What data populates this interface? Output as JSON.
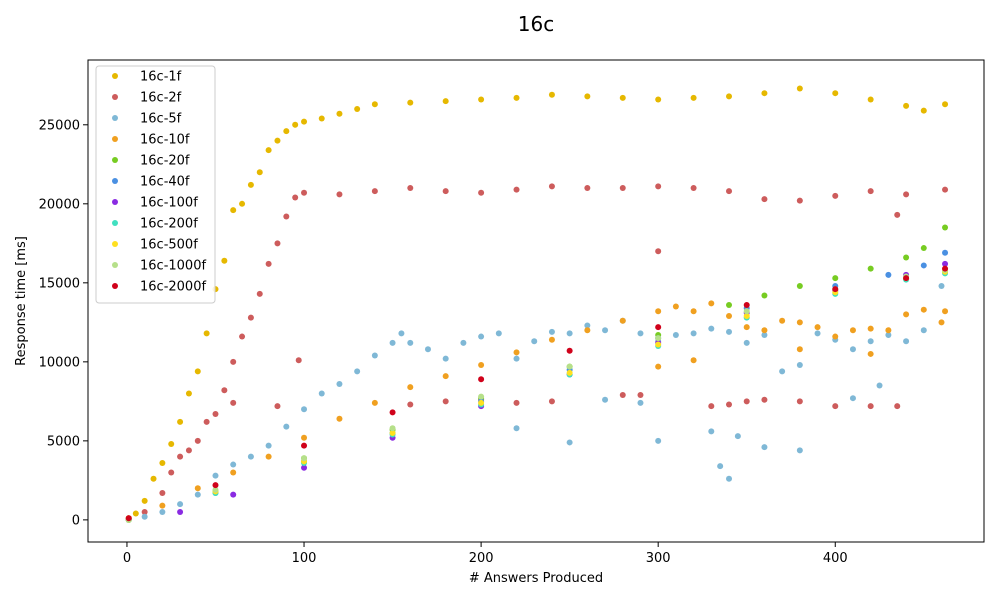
{
  "chart_data": {
    "type": "scatter",
    "title": "16c",
    "xlabel": "# Answers Produced",
    "ylabel": "Response time [ms]",
    "xlim": [
      -22,
      484
    ],
    "ylim": [
      -1400,
      29100
    ],
    "x_ticks": [
      0,
      100,
      200,
      300,
      400
    ],
    "y_ticks": [
      0,
      5000,
      10000,
      15000,
      20000,
      25000
    ],
    "x_tick_labels": [
      "0",
      "100",
      "200",
      "300",
      "400"
    ],
    "y_tick_labels": [
      "0",
      "5000",
      "10000",
      "15000",
      "20000",
      "25000"
    ],
    "grid": false,
    "legend_position": "top-left",
    "series": [
      {
        "name": "16c-1f",
        "color": "#e6b800",
        "points": [
          [
            1,
            100
          ],
          [
            5,
            400
          ],
          [
            10,
            1200
          ],
          [
            15,
            2600
          ],
          [
            20,
            3600
          ],
          [
            25,
            4800
          ],
          [
            30,
            6200
          ],
          [
            35,
            8000
          ],
          [
            40,
            9400
          ],
          [
            45,
            11800
          ],
          [
            50,
            14600
          ],
          [
            55,
            16400
          ],
          [
            60,
            19600
          ],
          [
            65,
            20000
          ],
          [
            70,
            21200
          ],
          [
            75,
            22000
          ],
          [
            80,
            23400
          ],
          [
            85,
            24000
          ],
          [
            90,
            24600
          ],
          [
            95,
            25000
          ],
          [
            100,
            25200
          ],
          [
            110,
            25400
          ],
          [
            120,
            25700
          ],
          [
            130,
            26000
          ],
          [
            140,
            26300
          ],
          [
            160,
            26400
          ],
          [
            180,
            26500
          ],
          [
            200,
            26600
          ],
          [
            220,
            26700
          ],
          [
            240,
            26900
          ],
          [
            260,
            26800
          ],
          [
            280,
            26700
          ],
          [
            300,
            26600
          ],
          [
            320,
            26700
          ],
          [
            340,
            26800
          ],
          [
            360,
            27000
          ],
          [
            380,
            27300
          ],
          [
            400,
            27000
          ],
          [
            420,
            26600
          ],
          [
            440,
            26200
          ],
          [
            450,
            25900
          ],
          [
            462,
            26300
          ]
        ]
      },
      {
        "name": "16c-2f",
        "color": "#cd5c5c",
        "points": [
          [
            1,
            100
          ],
          [
            10,
            500
          ],
          [
            20,
            1700
          ],
          [
            25,
            3000
          ],
          [
            30,
            4000
          ],
          [
            35,
            4400
          ],
          [
            40,
            5000
          ],
          [
            45,
            6200
          ],
          [
            50,
            6700
          ],
          [
            55,
            8200
          ],
          [
            60,
            10000
          ],
          [
            65,
            11600
          ],
          [
            70,
            12800
          ],
          [
            75,
            14300
          ],
          [
            80,
            16200
          ],
          [
            85,
            17500
          ],
          [
            90,
            19200
          ],
          [
            95,
            20400
          ],
          [
            100,
            20700
          ],
          [
            120,
            20600
          ],
          [
            140,
            20800
          ],
          [
            160,
            21000
          ],
          [
            180,
            20800
          ],
          [
            200,
            20700
          ],
          [
            220,
            20900
          ],
          [
            240,
            21100
          ],
          [
            260,
            21000
          ],
          [
            280,
            21000
          ],
          [
            300,
            21100
          ],
          [
            320,
            21000
          ],
          [
            340,
            20800
          ],
          [
            360,
            20300
          ],
          [
            380,
            20200
          ],
          [
            400,
            20500
          ],
          [
            420,
            20800
          ],
          [
            440,
            20600
          ],
          [
            462,
            20900
          ],
          [
            97,
            10100
          ],
          [
            85,
            7200
          ],
          [
            60,
            7400
          ],
          [
            160,
            7300
          ],
          [
            180,
            7500
          ],
          [
            200,
            7600
          ],
          [
            220,
            7400
          ],
          [
            240,
            7500
          ],
          [
            280,
            7900
          ],
          [
            290,
            7900
          ],
          [
            300,
            17000
          ],
          [
            330,
            7200
          ],
          [
            340,
            7300
          ],
          [
            350,
            7500
          ],
          [
            360,
            7600
          ],
          [
            380,
            7500
          ],
          [
            400,
            7200
          ],
          [
            420,
            7200
          ],
          [
            435,
            7200
          ],
          [
            435,
            19300
          ]
        ]
      },
      {
        "name": "16c-5f",
        "color": "#7fb8d6",
        "points": [
          [
            1,
            0
          ],
          [
            10,
            200
          ],
          [
            20,
            500
          ],
          [
            30,
            1000
          ],
          [
            40,
            1600
          ],
          [
            50,
            2800
          ],
          [
            60,
            3500
          ],
          [
            70,
            4000
          ],
          [
            80,
            4700
          ],
          [
            90,
            5900
          ],
          [
            100,
            7000
          ],
          [
            110,
            8000
          ],
          [
            120,
            8600
          ],
          [
            130,
            9400
          ],
          [
            140,
            10400
          ],
          [
            150,
            11200
          ],
          [
            155,
            11800
          ],
          [
            160,
            11200
          ],
          [
            170,
            10800
          ],
          [
            180,
            10200
          ],
          [
            190,
            11200
          ],
          [
            200,
            11600
          ],
          [
            210,
            11800
          ],
          [
            220,
            10200
          ],
          [
            230,
            11300
          ],
          [
            240,
            11900
          ],
          [
            250,
            11800
          ],
          [
            260,
            12300
          ],
          [
            270,
            12000
          ],
          [
            280,
            12600
          ],
          [
            290,
            11800
          ],
          [
            300,
            11300
          ],
          [
            310,
            11700
          ],
          [
            320,
            11800
          ],
          [
            330,
            12100
          ],
          [
            340,
            11900
          ],
          [
            350,
            11200
          ],
          [
            360,
            11700
          ],
          [
            370,
            9400
          ],
          [
            380,
            9800
          ],
          [
            390,
            11800
          ],
          [
            400,
            11400
          ],
          [
            410,
            10800
          ],
          [
            420,
            11300
          ],
          [
            430,
            11700
          ],
          [
            440,
            11300
          ],
          [
            450,
            12000
          ],
          [
            460,
            14800
          ],
          [
            220,
            5800
          ],
          [
            250,
            4900
          ],
          [
            300,
            5000
          ],
          [
            330,
            5600
          ],
          [
            335,
            3400
          ],
          [
            340,
            2600
          ],
          [
            345,
            5300
          ],
          [
            360,
            4600
          ],
          [
            380,
            4400
          ],
          [
            410,
            7700
          ],
          [
            425,
            8500
          ],
          [
            270,
            7600
          ],
          [
            290,
            7400
          ]
        ]
      },
      {
        "name": "16c-10f",
        "color": "#f0a020",
        "points": [
          [
            1,
            100
          ],
          [
            20,
            900
          ],
          [
            40,
            2000
          ],
          [
            60,
            3000
          ],
          [
            80,
            4000
          ],
          [
            100,
            5200
          ],
          [
            120,
            6400
          ],
          [
            140,
            7400
          ],
          [
            160,
            8400
          ],
          [
            180,
            9100
          ],
          [
            200,
            9800
          ],
          [
            220,
            10600
          ],
          [
            240,
            11400
          ],
          [
            260,
            12000
          ],
          [
            280,
            12600
          ],
          [
            300,
            13200
          ],
          [
            310,
            13500
          ],
          [
            320,
            13200
          ],
          [
            330,
            13700
          ],
          [
            340,
            12900
          ],
          [
            350,
            12200
          ],
          [
            360,
            12000
          ],
          [
            370,
            12600
          ],
          [
            380,
            12500
          ],
          [
            390,
            12200
          ],
          [
            400,
            11600
          ],
          [
            410,
            12000
          ],
          [
            420,
            12100
          ],
          [
            430,
            12000
          ],
          [
            440,
            13000
          ],
          [
            450,
            13300
          ],
          [
            460,
            12500
          ],
          [
            462,
            13200
          ],
          [
            380,
            10800
          ],
          [
            420,
            10500
          ],
          [
            300,
            9700
          ],
          [
            320,
            10100
          ]
        ]
      },
      {
        "name": "16c-20f",
        "color": "#77cc22",
        "points": [
          [
            1,
            0
          ],
          [
            50,
            1800
          ],
          [
            100,
            3900
          ],
          [
            150,
            5700
          ],
          [
            200,
            7700
          ],
          [
            250,
            9700
          ],
          [
            300,
            11700
          ],
          [
            340,
            13600
          ],
          [
            360,
            14200
          ],
          [
            380,
            14800
          ],
          [
            400,
            15300
          ],
          [
            420,
            15900
          ],
          [
            440,
            16600
          ],
          [
            450,
            17200
          ],
          [
            462,
            18500
          ]
        ]
      },
      {
        "name": "16c-40f",
        "color": "#4a90e2",
        "points": [
          [
            1,
            0
          ],
          [
            50,
            1700
          ],
          [
            100,
            3700
          ],
          [
            150,
            5500
          ],
          [
            200,
            7500
          ],
          [
            250,
            9500
          ],
          [
            300,
            11500
          ],
          [
            350,
            13400
          ],
          [
            400,
            14800
          ],
          [
            430,
            15500
          ],
          [
            450,
            16100
          ],
          [
            462,
            16900
          ]
        ]
      },
      {
        "name": "16c-100f",
        "color": "#8a2be2",
        "points": [
          [
            1,
            0
          ],
          [
            30,
            500
          ],
          [
            60,
            1600
          ],
          [
            100,
            3300
          ],
          [
            150,
            5200
          ],
          [
            200,
            7200
          ],
          [
            250,
            9200
          ],
          [
            300,
            11200
          ],
          [
            350,
            13100
          ],
          [
            400,
            14500
          ],
          [
            440,
            15500
          ],
          [
            462,
            16200
          ]
        ]
      },
      {
        "name": "16c-200f",
        "color": "#40e0c0",
        "points": [
          [
            1,
            0
          ],
          [
            50,
            1700
          ],
          [
            100,
            3600
          ],
          [
            150,
            5400
          ],
          [
            200,
            7300
          ],
          [
            250,
            9200
          ],
          [
            300,
            11000
          ],
          [
            350,
            12800
          ],
          [
            400,
            14300
          ],
          [
            440,
            15200
          ],
          [
            462,
            15600
          ]
        ]
      },
      {
        "name": "16c-500f",
        "color": "#ffe020",
        "points": [
          [
            1,
            0
          ],
          [
            50,
            1800
          ],
          [
            100,
            3700
          ],
          [
            150,
            5500
          ],
          [
            200,
            7400
          ],
          [
            250,
            9300
          ],
          [
            300,
            11100
          ],
          [
            350,
            12900
          ],
          [
            400,
            14400
          ],
          [
            440,
            15300
          ],
          [
            462,
            15700
          ]
        ]
      },
      {
        "name": "16c-1000f",
        "color": "#b6e08a",
        "points": [
          [
            1,
            0
          ],
          [
            50,
            1900
          ],
          [
            100,
            3900
          ],
          [
            150,
            5800
          ],
          [
            200,
            7800
          ],
          [
            250,
            9700
          ],
          [
            300,
            11500
          ],
          [
            350,
            13200
          ],
          [
            400,
            14600
          ],
          [
            440,
            15400
          ],
          [
            462,
            15800
          ]
        ]
      },
      {
        "name": "16c-2000f",
        "color": "#d0021b",
        "points": [
          [
            1,
            100
          ],
          [
            50,
            2200
          ],
          [
            100,
            4700
          ],
          [
            150,
            6800
          ],
          [
            200,
            8900
          ],
          [
            250,
            10700
          ],
          [
            300,
            12200
          ],
          [
            350,
            13600
          ],
          [
            400,
            14600
          ],
          [
            440,
            15300
          ],
          [
            462,
            15900
          ]
        ]
      }
    ]
  }
}
